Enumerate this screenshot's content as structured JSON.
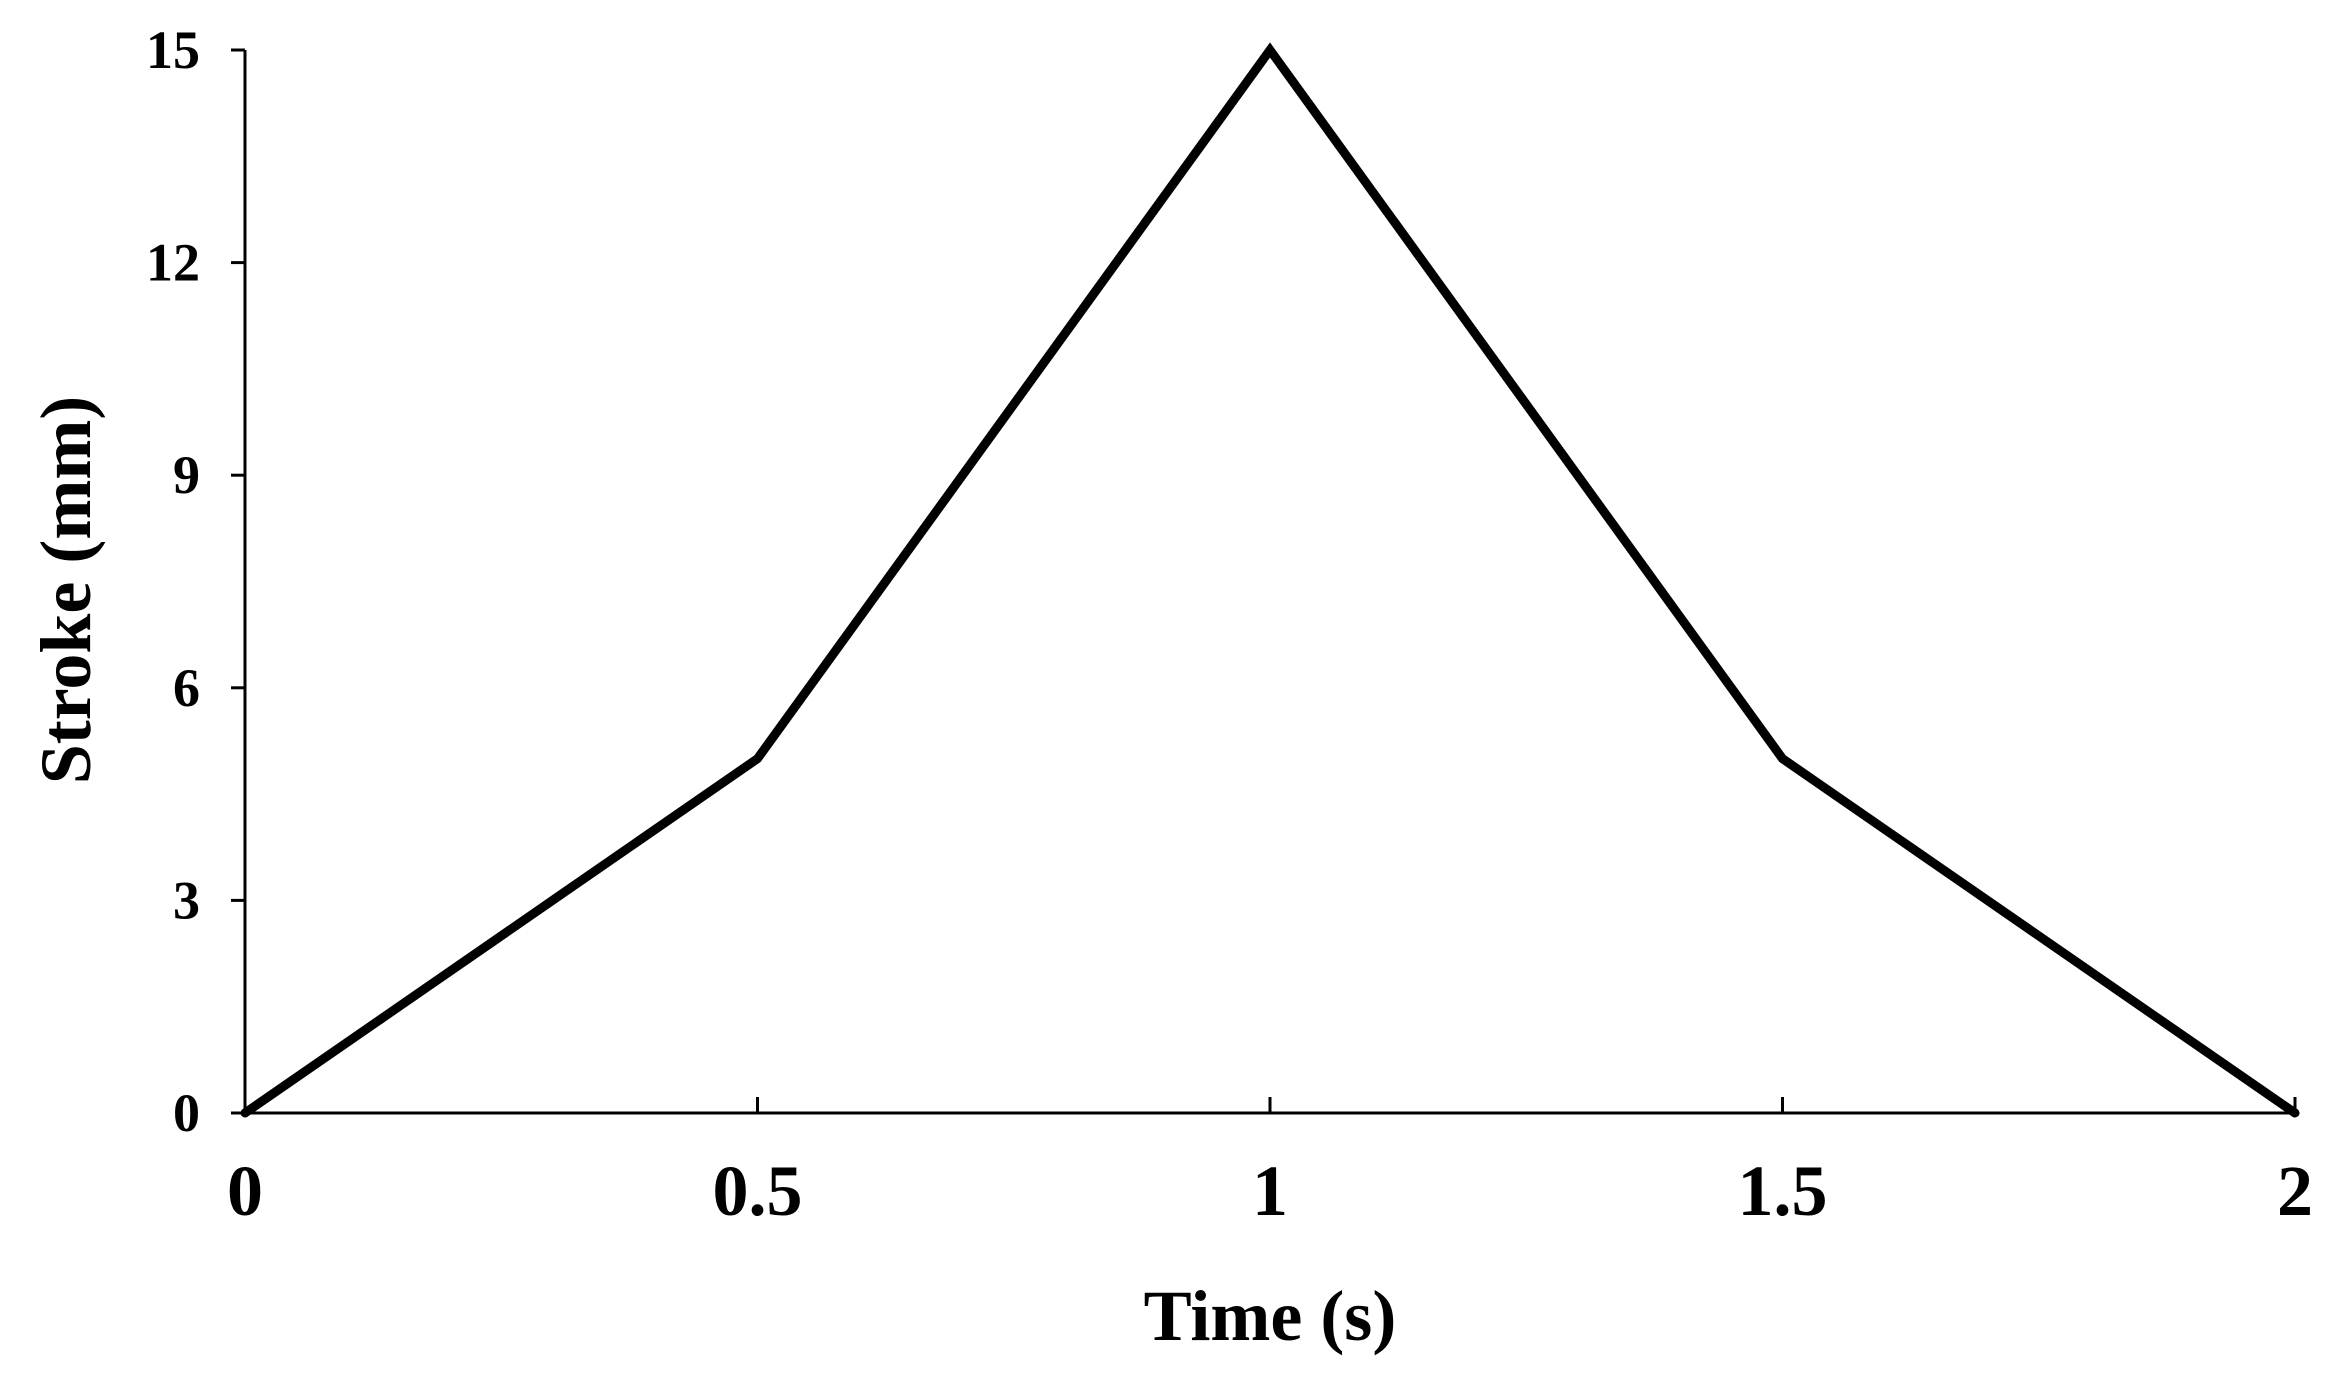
{
  "chart_data": {
    "type": "line",
    "title": "",
    "xlabel": "Time (s)",
    "ylabel": "Stroke (mm)",
    "xlim": [
      0,
      2
    ],
    "ylim": [
      0,
      15
    ],
    "x_ticks": [
      0,
      0.5,
      1,
      1.5,
      2
    ],
    "y_ticks": [
      0,
      3,
      6,
      9,
      12,
      15
    ],
    "x_tick_labels": [
      "0",
      "0.5",
      "1",
      "1.5",
      "2"
    ],
    "y_tick_labels": [
      "0",
      "3",
      "6",
      "9",
      "12",
      "15"
    ],
    "grid": false,
    "legend": "none",
    "series": [
      {
        "x": [
          0,
          0.5,
          1,
          1.5,
          2
        ],
        "y": [
          0,
          5,
          15,
          5,
          0
        ],
        "color": "#000000"
      }
    ]
  }
}
